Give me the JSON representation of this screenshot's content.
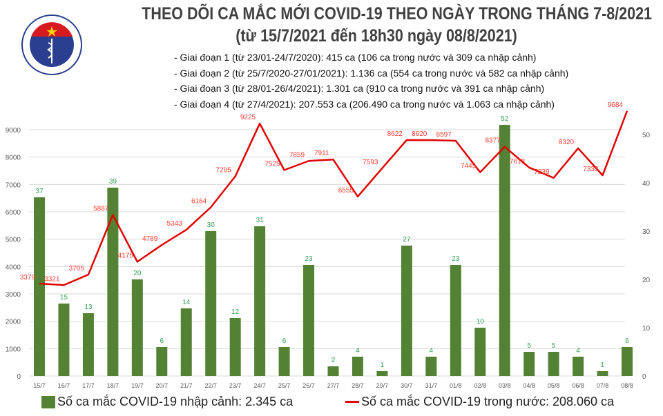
{
  "header": {
    "title": "THEO DÕI CA MẮC MỚI COVID-19 THEO NGÀY TRONG THÁNG 7-8/2021",
    "subtitle": "(từ 15/7/2021 đến 18h30 ngày 08/8/2021)",
    "logo_text": "BỘ Y TẾ · MINISTRY OF HEALTH",
    "notes": [
      "- Giai đoạn 1 (từ 23/01-24/7/2020): 415 ca (106 ca trong nước và 309 ca nhập cảnh)",
      "- Giai đoạn 2 (từ 25/7/2020-27/01/2021): 1.136 ca (554 ca trong nước và 582 ca nhập cảnh)",
      "- Giai đoạn 3 (từ 28/01-26/4/2021): 1.301 ca (910 ca trong nước và 391 ca nhập cảnh)",
      "- Giai đoạn 4 (từ 27/4/2021): 207.553 ca (206.490 ca trong nước và 1.063 ca nhập cảnh)"
    ]
  },
  "chart_data": {
    "type": "bar+line",
    "title": "THEO DÕI CA MẮC MỚI COVID-19 THEO NGÀY TRONG THÁNG 7-8/2021",
    "categories": [
      "15/7",
      "16/7",
      "17/7",
      "18/7",
      "19/7",
      "20/7",
      "21/7",
      "22/7",
      "23/7",
      "24/7",
      "25/7",
      "26/7",
      "27/7",
      "28/7",
      "29/7",
      "30/7",
      "31/7",
      "01/8",
      "02/8",
      "03/8",
      "04/8",
      "05/8",
      "06/8",
      "07/8",
      "08/8"
    ],
    "series": [
      {
        "name": "Số ca mắc COVID-19 nhập cảnh: 2.345 ca",
        "type": "bar",
        "axis": "right",
        "color": "#548235",
        "values": [
          37,
          15,
          13,
          39,
          20,
          6,
          14,
          30,
          12,
          31,
          6,
          23,
          2,
          4,
          1,
          27,
          4,
          23,
          10,
          52,
          5,
          5,
          4,
          1,
          6
        ]
      },
      {
        "name": "Số ca mắc COVID-19 trong nước: 208.060 ca",
        "type": "line",
        "axis": "left",
        "color": "#e00000",
        "values": [
          3379,
          3321,
          3705,
          5887,
          4175,
          4789,
          5343,
          6164,
          7295,
          9225,
          7525,
          7859,
          7911,
          6555,
          7593,
          8622,
          8620,
          8597,
          7445,
          8377,
          7618,
          7239,
          8320,
          7333,
          9684
        ]
      }
    ],
    "y_left": {
      "range": [
        0,
        9000
      ],
      "ticks": [
        0,
        1000,
        2000,
        3000,
        4000,
        5000,
        6000,
        7000,
        8000,
        9000
      ]
    },
    "y_right": {
      "range": [
        0,
        50
      ],
      "ticks": [
        0,
        10,
        20,
        30,
        40,
        50
      ]
    },
    "grid": true,
    "legend_position": "bottom",
    "data_label_colors": {
      "bar": "#2e9e57",
      "line": "#ff3b30"
    }
  }
}
